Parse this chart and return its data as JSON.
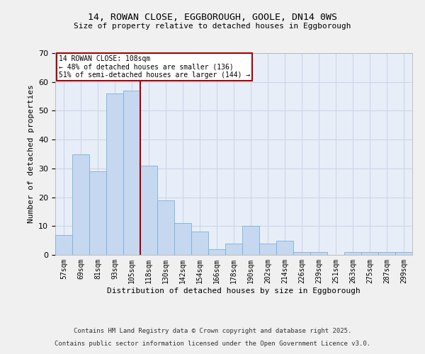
{
  "title_line1": "14, ROWAN CLOSE, EGGBOROUGH, GOOLE, DN14 0WS",
  "title_line2": "Size of property relative to detached houses in Eggborough",
  "xlabel": "Distribution of detached houses by size in Eggborough",
  "ylabel": "Number of detached properties",
  "bar_labels": [
    "57sqm",
    "69sqm",
    "81sqm",
    "93sqm",
    "105sqm",
    "118sqm",
    "130sqm",
    "142sqm",
    "154sqm",
    "166sqm",
    "178sqm",
    "190sqm",
    "202sqm",
    "214sqm",
    "226sqm",
    "239sqm",
    "251sqm",
    "263sqm",
    "275sqm",
    "287sqm",
    "299sqm"
  ],
  "bar_values": [
    7,
    35,
    29,
    56,
    57,
    31,
    19,
    11,
    8,
    2,
    4,
    10,
    4,
    5,
    1,
    1,
    0,
    1,
    1,
    1,
    1
  ],
  "bar_color": "#c5d8f0",
  "bar_edge_color": "#7ab0d8",
  "vline_x": 4.5,
  "vline_color": "#aa0000",
  "annotation_text": "14 ROWAN CLOSE: 108sqm\n← 48% of detached houses are smaller (136)\n51% of semi-detached houses are larger (144) →",
  "annotation_box_color": "#ffffff",
  "annotation_box_edge": "#aa0000",
  "ylim": [
    0,
    70
  ],
  "yticks": [
    0,
    10,
    20,
    30,
    40,
    50,
    60,
    70
  ],
  "grid_color": "#ccd5e8",
  "background_color": "#e8eef8",
  "fig_background": "#f0f0f0",
  "footer_line1": "Contains HM Land Registry data © Crown copyright and database right 2025.",
  "footer_line2": "Contains public sector information licensed under the Open Government Licence v3.0."
}
